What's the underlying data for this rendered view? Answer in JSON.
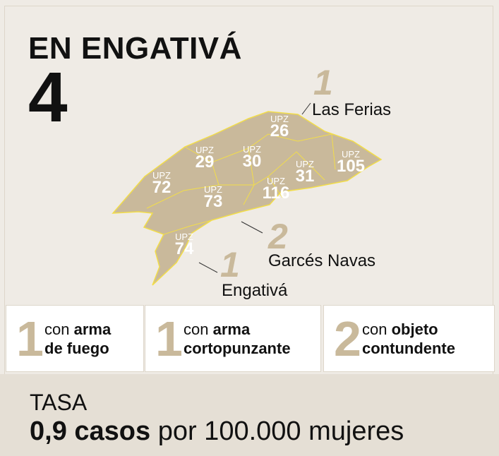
{
  "header": {
    "title": "EN ENGATIVÁ",
    "total": 4
  },
  "map": {
    "districts": [
      {
        "prefix": "UPZ",
        "number": 26
      },
      {
        "prefix": "UPZ",
        "number": 29
      },
      {
        "prefix": "UPZ",
        "number": 30
      },
      {
        "prefix": "UPZ",
        "number": 72
      },
      {
        "prefix": "UPZ",
        "number": 73
      },
      {
        "prefix": "UPZ",
        "number": 116
      },
      {
        "prefix": "UPZ",
        "number": 31
      },
      {
        "prefix": "UPZ",
        "number": 105
      },
      {
        "prefix": "UPZ",
        "number": 74
      }
    ],
    "callouts": [
      {
        "count": 1,
        "name": "Las Ferias"
      },
      {
        "count": 2,
        "name": "Garcés Navas"
      },
      {
        "count": 1,
        "name": "Engativá"
      }
    ]
  },
  "weapons": [
    {
      "count": 1,
      "prefix": "con",
      "lines": [
        "arma",
        "de fuego"
      ]
    },
    {
      "count": 1,
      "prefix": "con",
      "lines": [
        "arma",
        "cortopunzante"
      ]
    },
    {
      "count": 2,
      "prefix": "con",
      "lines": [
        "objeto",
        "contundente"
      ]
    }
  ],
  "rate": {
    "label": "TASA",
    "value": "0,9 casos",
    "unit": "por 100.000 mujeres"
  }
}
